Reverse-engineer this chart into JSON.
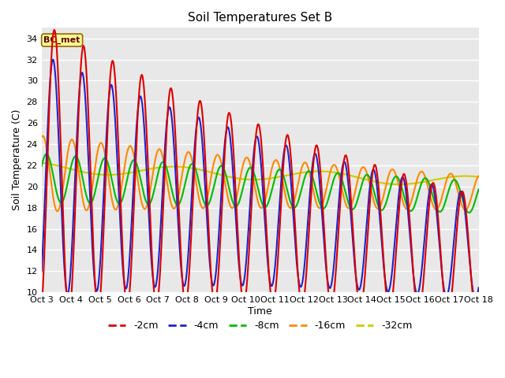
{
  "title": "Soil Temperatures Set B",
  "xlabel": "Time",
  "ylabel": "Soil Temperature (C)",
  "ylim": [
    10,
    35
  ],
  "yticks": [
    10,
    12,
    14,
    16,
    18,
    20,
    22,
    24,
    26,
    28,
    30,
    32,
    34
  ],
  "xtick_labels": [
    "Oct 3",
    "Oct 4",
    "Oct 5",
    "Oct 6",
    "Oct 7",
    "Oct 8",
    "Oct 9",
    "Oct 10",
    "Oct 11",
    "Oct 12",
    "Oct 13",
    "Oct 14",
    "Oct 15",
    "Oct 16",
    "Oct 17",
    "Oct 18"
  ],
  "legend_label": "BC_met",
  "series_labels": [
    "-2cm",
    "-4cm",
    "-8cm",
    "-16cm",
    "-32cm"
  ],
  "series_colors": [
    "#dd0000",
    "#2222cc",
    "#00bb00",
    "#ff8800",
    "#cccc00"
  ],
  "line_width": 1.5,
  "bg_color": "#ffffff",
  "plot_bg_color": "#e8e8e8",
  "grid_color": "#ffffff",
  "annotation_box_facecolor": "#ffff99",
  "annotation_box_edgecolor": "#996600",
  "annotation_text_color": "#660000",
  "legend_bottom_colors": [
    "#dd0000",
    "#2222cc",
    "#00bb00",
    "#ff8800",
    "#cccc00"
  ]
}
